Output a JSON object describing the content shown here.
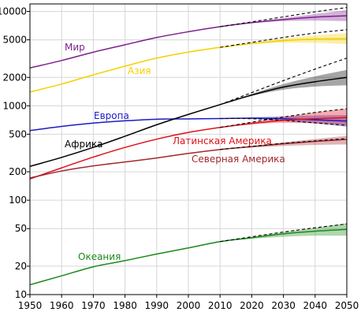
{
  "chart_data": {
    "type": "line",
    "title": "",
    "xlabel": "",
    "ylabel": "",
    "y_scale": "log",
    "xlim": [
      1950,
      2050
    ],
    "ylim": [
      10,
      12000
    ],
    "x_ticks": [
      1950,
      1960,
      1970,
      1980,
      1990,
      2000,
      2010,
      2020,
      2030,
      2040,
      2050
    ],
    "y_ticks": [
      {
        "value": 10,
        "label": "10"
      },
      {
        "value": 20,
        "label": "20"
      },
      {
        "value": 50,
        "label": "50"
      },
      {
        "value": 100,
        "label": "100"
      },
      {
        "value": 200,
        "label": "200"
      },
      {
        "value": 500,
        "label": "500"
      },
      {
        "value": 1000,
        "label": "1000"
      },
      {
        "value": 2000,
        "label": "2000"
      },
      {
        "value": 5000,
        "label": "5000"
      },
      {
        "value": 10000,
        "label": "10000"
      }
    ],
    "grid": true,
    "legend": "inline labels",
    "series": [
      {
        "name": "Мир",
        "color": "#7f1f8f",
        "x": [
          1950,
          1960,
          1970,
          1980,
          1990,
          2000,
          2010,
          2020,
          2030,
          2040,
          2050
        ],
        "values": [
          2520,
          3020,
          3700,
          4430,
          5290,
          6090,
          6890,
          7600,
          8200,
          8700,
          9000
        ],
        "upper": [
          2520,
          3020,
          3700,
          4430,
          5290,
          6090,
          6890,
          7700,
          8500,
          9400,
          10300
        ],
        "lower": [
          2520,
          3020,
          3700,
          4430,
          5290,
          6090,
          6890,
          7500,
          7900,
          8000,
          7900
        ],
        "dashed_x": [
          2010,
          2020,
          2030,
          2040,
          2050
        ],
        "dashed": [
          6890,
          7750,
          8750,
          9900,
          11000
        ]
      },
      {
        "name": "Азия",
        "color": "#f5d000",
        "x": [
          1950,
          1960,
          1970,
          1980,
          1990,
          2000,
          2010,
          2020,
          2030,
          2040,
          2050
        ],
        "values": [
          1400,
          1700,
          2130,
          2630,
          3200,
          3710,
          4160,
          4570,
          4900,
          5100,
          5150
        ],
        "upper": [
          1400,
          1700,
          2130,
          2630,
          3200,
          3710,
          4160,
          4650,
          5150,
          5550,
          5900
        ],
        "lower": [
          1400,
          1700,
          2130,
          2630,
          3200,
          3710,
          4160,
          4500,
          4650,
          4650,
          4500
        ],
        "dashed_x": [
          2010,
          2020,
          2030,
          2040,
          2050
        ],
        "dashed": [
          4160,
          4700,
          5300,
          5900,
          6400
        ]
      },
      {
        "name": "Европа",
        "color": "#1a1ac8",
        "x": [
          1950,
          1960,
          1970,
          1980,
          1990,
          2000,
          2010,
          2020,
          2030,
          2040,
          2050
        ],
        "values": [
          547,
          605,
          656,
          693,
          721,
          726,
          733,
          740,
          730,
          710,
          690
        ],
        "upper": [
          547,
          605,
          656,
          693,
          721,
          726,
          733,
          755,
          775,
          790,
          800
        ],
        "lower": [
          547,
          605,
          656,
          693,
          721,
          726,
          733,
          725,
          690,
          650,
          600
        ],
        "dashed_x": [
          2010,
          2020,
          2030,
          2040,
          2050
        ],
        "dashed": [
          733,
          730,
          700,
          660,
          620
        ]
      },
      {
        "name": "Африка",
        "color": "#000000",
        "x": [
          1950,
          1960,
          1970,
          1980,
          1990,
          2000,
          2010,
          2020,
          2030,
          2040,
          2050
        ],
        "values": [
          228,
          284,
          363,
          476,
          630,
          811,
          1030,
          1300,
          1580,
          1800,
          2000
        ],
        "upper": [
          228,
          284,
          363,
          476,
          630,
          811,
          1030,
          1340,
          1700,
          2050,
          2400
        ],
        "lower": [
          228,
          284,
          363,
          476,
          630,
          811,
          1030,
          1270,
          1480,
          1600,
          1650
        ],
        "dashed_x": [
          2010,
          2020,
          2030,
          2040,
          2050
        ],
        "dashed": [
          1030,
          1380,
          1850,
          2450,
          3200
        ]
      },
      {
        "name": "Латинская Америка",
        "color": "#e0101a",
        "x": [
          1950,
          1960,
          1970,
          1980,
          1990,
          2000,
          2010,
          2020,
          2030,
          2040,
          2050
        ],
        "values": [
          168,
          220,
          286,
          362,
          443,
          522,
          590,
          650,
          700,
          730,
          750
        ],
        "upper": [
          168,
          220,
          286,
          362,
          443,
          522,
          590,
          670,
          760,
          850,
          930
        ],
        "lower": [
          168,
          220,
          286,
          362,
          443,
          522,
          590,
          635,
          660,
          650,
          620
        ],
        "dashed_x": [
          2010,
          2020,
          2030,
          2040,
          2050
        ],
        "dashed": [
          590,
          670,
          760,
          850,
          930
        ]
      },
      {
        "name": "Северная Америка",
        "color": "#a3282c",
        "x": [
          1950,
          1960,
          1970,
          1980,
          1990,
          2000,
          2010,
          2020,
          2030,
          2040,
          2050
        ],
        "values": [
          172,
          204,
          231,
          254,
          280,
          313,
          344,
          370,
          396,
          420,
          440
        ],
        "upper": [
          172,
          204,
          231,
          254,
          280,
          313,
          344,
          375,
          410,
          445,
          480
        ],
        "lower": [
          172,
          204,
          231,
          254,
          280,
          313,
          344,
          362,
          375,
          385,
          390
        ],
        "dashed_x": [
          2010,
          2020,
          2030,
          2040,
          2050
        ],
        "dashed": [
          344,
          372,
          400,
          425,
          450
        ]
      },
      {
        "name": "Океания",
        "color": "#1a8a1a",
        "x": [
          1950,
          1960,
          1970,
          1980,
          1990,
          2000,
          2010,
          2020,
          2030,
          2040,
          2050
        ],
        "values": [
          12.7,
          15.8,
          19.7,
          22.9,
          26.9,
          31.2,
          36.4,
          40,
          44,
          47,
          49
        ],
        "upper": [
          12.7,
          15.8,
          19.7,
          22.9,
          26.9,
          31.2,
          36.4,
          41,
          46,
          51,
          57
        ],
        "lower": [
          12.7,
          15.8,
          19.7,
          22.9,
          26.9,
          31.2,
          36.4,
          39,
          41,
          42,
          42
        ],
        "dashed_x": [
          2010,
          2020,
          2030,
          2040,
          2050
        ],
        "dashed": [
          36.4,
          41,
          46,
          51,
          56
        ]
      }
    ]
  }
}
